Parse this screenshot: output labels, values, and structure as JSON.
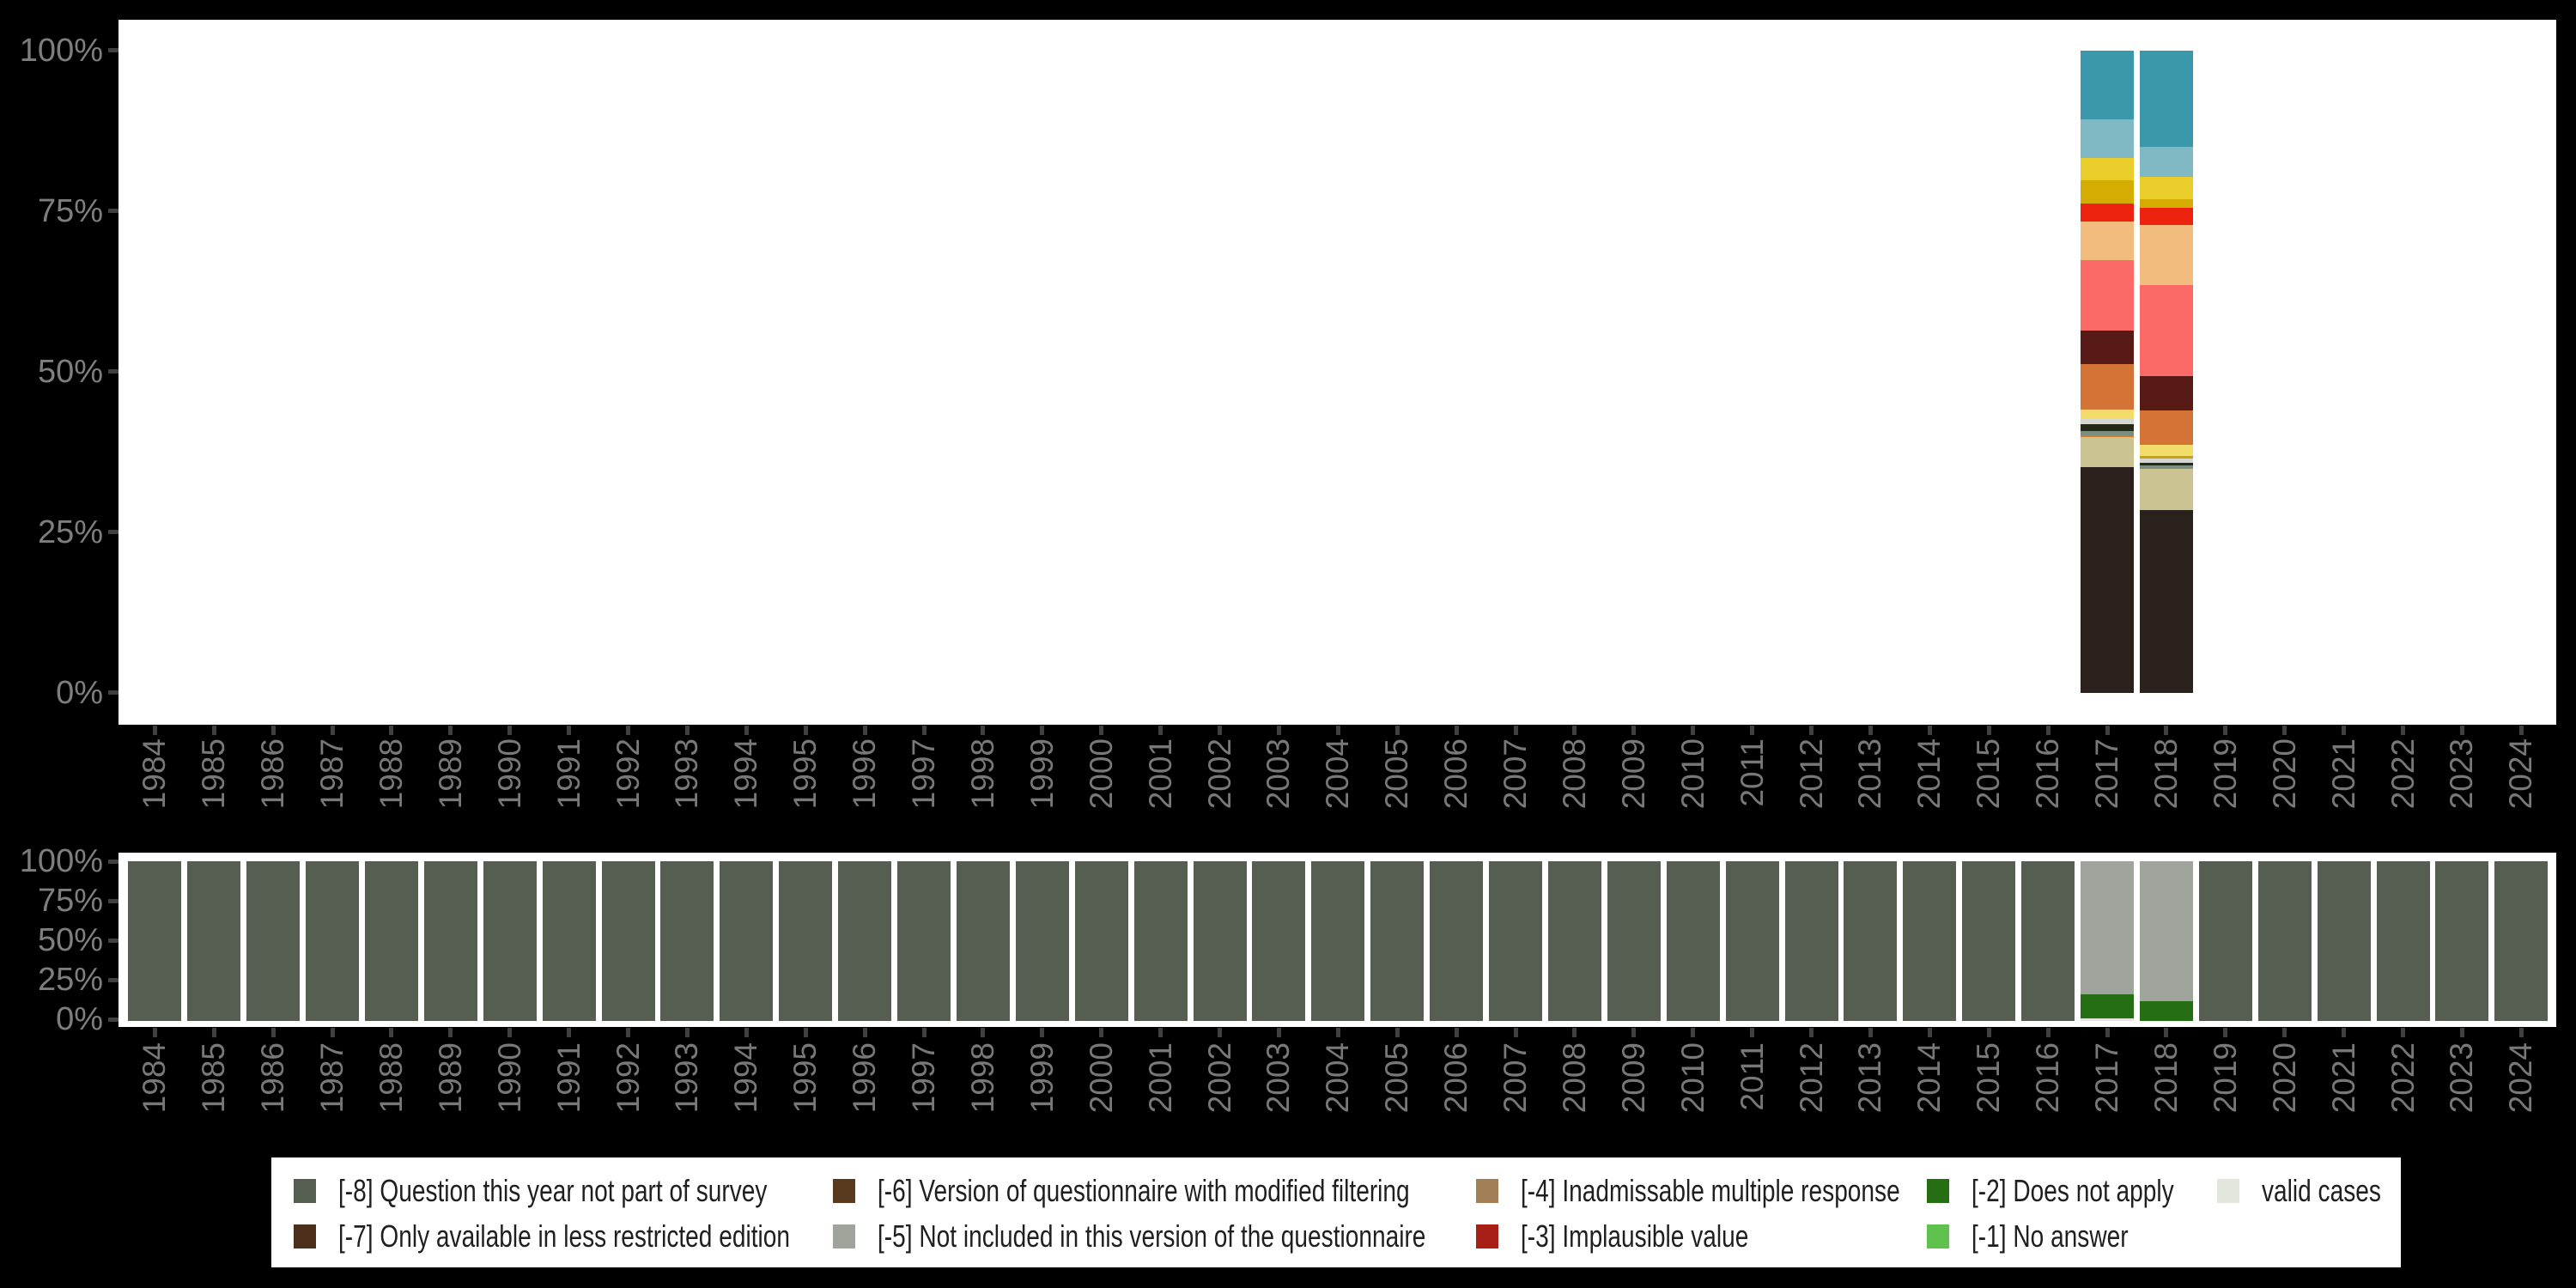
{
  "colors": {
    "background": "#000000",
    "panel": "#ffffff",
    "axis_label_text": "#7e7e7e",
    "year_label_text": "#787878",
    "tick": "#404040",
    "legend_text": "#1f1f1f"
  },
  "chart_data": [
    {
      "name": "values-distribution-by-year",
      "type": "bar",
      "stacked": true,
      "unit": "percent",
      "ylim": [
        0,
        100
      ],
      "grid": false,
      "y_tick_labels": [
        "100%",
        "75%",
        "50%",
        "25%",
        "0%"
      ],
      "categories": [
        "1984",
        "1985",
        "1986",
        "1987",
        "1988",
        "1989",
        "1990",
        "1991",
        "1992",
        "1993",
        "1994",
        "1995",
        "1996",
        "1997",
        "1998",
        "1999",
        "2000",
        "2001",
        "2002",
        "2003",
        "2004",
        "2005",
        "2006",
        "2007",
        "2008",
        "2009",
        "2010",
        "2011",
        "2012",
        "2013",
        "2014",
        "2015",
        "2016",
        "2017",
        "2018",
        "2019",
        "2020",
        "2021",
        "2022",
        "2023",
        "2024"
      ],
      "bars": {
        "2017": [
          {
            "color": "#3b98aa",
            "value": 10.7
          },
          {
            "color": "#80b8c4",
            "value": 6.06
          },
          {
            "color": "#e9cd2b",
            "value": 3.44
          },
          {
            "color": "#d5ad02",
            "value": 3.57
          },
          {
            "color": "#ed220f",
            "value": 2.89
          },
          {
            "color": "#f1bc7e",
            "value": 5.94
          },
          {
            "color": "#fc6a68",
            "value": 11.0
          },
          {
            "color": "#581a16",
            "value": 5.21
          },
          {
            "color": "#d37336",
            "value": 7.13
          },
          {
            "color": "#f2dc6a",
            "value": 1.3
          },
          {
            "color": "#d5d7d2",
            "value": 0.98
          },
          {
            "color": "#232a18",
            "value": 0.99
          },
          {
            "color": "#7a8f82",
            "value": 0.71
          },
          {
            "color": "#cd7d28",
            "value": 0.23
          },
          {
            "color": "#cbc492",
            "value": 4.76
          },
          {
            "color": "#2a211d",
            "value": 35.09
          }
        ],
        "2018": [
          {
            "color": "#3b98aa",
            "value": 14.93
          },
          {
            "color": "#80b8c4",
            "value": 4.72
          },
          {
            "color": "#e9cd2b",
            "value": 3.44
          },
          {
            "color": "#d5ad02",
            "value": 1.42
          },
          {
            "color": "#ed220f",
            "value": 2.67
          },
          {
            "color": "#f1bc7e",
            "value": 9.32
          },
          {
            "color": "#fc6a68",
            "value": 14.13
          },
          {
            "color": "#581a16",
            "value": 5.43
          },
          {
            "color": "#d37336",
            "value": 5.35
          },
          {
            "color": "#f2dc6a",
            "value": 1.66
          },
          {
            "color": "#c8a30a",
            "value": 0.44
          },
          {
            "color": "#d5d7d2",
            "value": 0.67
          },
          {
            "color": "#232a18",
            "value": 0.44
          },
          {
            "color": "#7a8f82",
            "value": 0.53
          },
          {
            "color": "#cbc492",
            "value": 6.38
          },
          {
            "color": "#2a211d",
            "value": 28.47
          }
        ]
      }
    },
    {
      "name": "missing-codes-by-year",
      "type": "bar",
      "stacked": true,
      "unit": "percent",
      "ylim": [
        0,
        100
      ],
      "grid": false,
      "y_tick_labels": [
        "100%",
        "75%",
        "50%",
        "25%",
        "0%"
      ],
      "categories": [
        "1984",
        "1985",
        "1986",
        "1987",
        "1988",
        "1989",
        "1990",
        "1991",
        "1992",
        "1993",
        "1994",
        "1995",
        "1996",
        "1997",
        "1998",
        "1999",
        "2000",
        "2001",
        "2002",
        "2003",
        "2004",
        "2005",
        "2006",
        "2007",
        "2008",
        "2009",
        "2010",
        "2011",
        "2012",
        "2013",
        "2014",
        "2015",
        "2016",
        "2017",
        "2018",
        "2019",
        "2020",
        "2021",
        "2022",
        "2023",
        "2024"
      ],
      "default_segment": {
        "label": "[-8] Question this year not part of survey",
        "color": "#565e52",
        "value": 100
      },
      "bars": {
        "2017": [
          {
            "label": "[-5] Not included in this version of the questionnaire",
            "color": "#9fa49c",
            "value": 83.2
          },
          {
            "label": "[-2] Does not apply",
            "color": "#256e13",
            "value": 15.0
          },
          {
            "label": "valid cases",
            "color": "#e2e6dd",
            "value": 1.8
          }
        ],
        "2018": [
          {
            "label": "[-5] Not included in this version of the questionnaire",
            "color": "#9fa49c",
            "value": 87.6
          },
          {
            "label": "[-2] Does not apply",
            "color": "#256e13",
            "value": 12.4
          }
        ]
      }
    }
  ],
  "legend": {
    "entries": [
      {
        "label": "[-8] Question this year not part of survey",
        "color": "#565e52"
      },
      {
        "label": "[-7] Only available in less restricted edition",
        "color": "#4c301b"
      },
      {
        "label": "[-6] Version of questionnaire with modified filtering",
        "color": "#5a3a1e"
      },
      {
        "label": "[-5] Not included in this version of the questionnaire",
        "color": "#9fa49c"
      },
      {
        "label": "[-4] Inadmissable multiple response",
        "color": "#a27f57"
      },
      {
        "label": "[-3] Implausible value",
        "color": "#a81f17"
      },
      {
        "label": "[-2] Does not apply",
        "color": "#256e13"
      },
      {
        "label": "[-1] No answer",
        "color": "#5fc14e"
      },
      {
        "label": "valid cases",
        "color": "#e2e6dd"
      }
    ]
  }
}
